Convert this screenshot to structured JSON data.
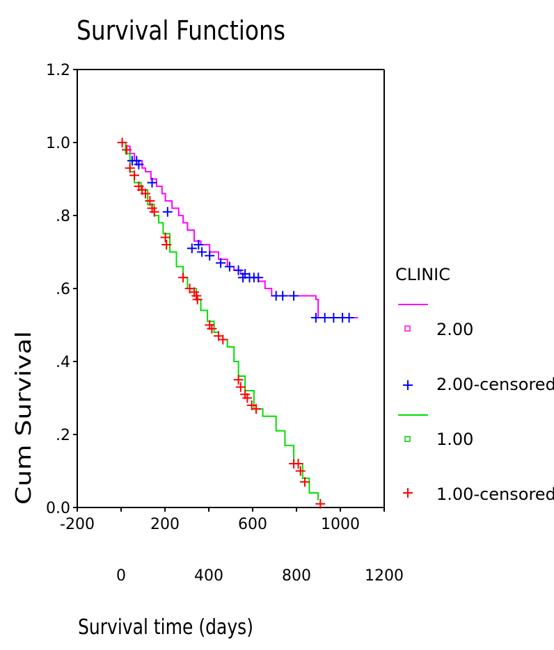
{
  "chart_data": {
    "type": "line",
    "title": "Survival Functions",
    "xlabel": "Survival time (days)",
    "ylabel": "Cum Survival",
    "xlim": [
      -200,
      1200
    ],
    "ylim": [
      0.0,
      1.2
    ],
    "x_ticks_row1": [
      "-200",
      "200",
      "600",
      "1000"
    ],
    "x_ticks_row2": [
      "0",
      "400",
      "800",
      "1200"
    ],
    "y_ticks": [
      "0.0",
      ".2",
      ".4",
      ".6",
      ".8",
      "1.0",
      "1.2"
    ],
    "legend": {
      "title": "CLINIC",
      "entries": [
        "2.00",
        "2.00-censored",
        "1.00",
        "1.00-censored"
      ]
    },
    "colors": {
      "clinic2_line": "#ff00ff",
      "clinic2_censored": "#0000ff",
      "clinic1_line": "#00dd00",
      "clinic1_censored": "#ff0000"
    },
    "series": [
      {
        "name": "2.00",
        "points": [
          [
            0,
            1.0
          ],
          [
            20,
            0.99
          ],
          [
            40,
            0.97
          ],
          [
            60,
            0.95
          ],
          [
            95,
            0.93
          ],
          [
            110,
            0.92
          ],
          [
            135,
            0.9
          ],
          [
            160,
            0.88
          ],
          [
            185,
            0.86
          ],
          [
            200,
            0.84
          ],
          [
            230,
            0.82
          ],
          [
            260,
            0.8
          ],
          [
            280,
            0.78
          ],
          [
            300,
            0.76
          ],
          [
            330,
            0.73
          ],
          [
            360,
            0.72
          ],
          [
            400,
            0.7
          ],
          [
            440,
            0.68
          ],
          [
            480,
            0.66
          ],
          [
            510,
            0.65
          ],
          [
            540,
            0.64
          ],
          [
            580,
            0.63
          ],
          [
            620,
            0.62
          ],
          [
            650,
            0.6
          ],
          [
            680,
            0.58
          ],
          [
            880,
            0.57
          ],
          [
            890,
            0.52
          ],
          [
            1070,
            0.52
          ]
        ],
        "censored": [
          [
            50,
            0.95
          ],
          [
            70,
            0.95
          ],
          [
            80,
            0.94
          ],
          [
            140,
            0.89
          ],
          [
            210,
            0.81
          ],
          [
            320,
            0.71
          ],
          [
            350,
            0.72
          ],
          [
            365,
            0.7
          ],
          [
            400,
            0.69
          ],
          [
            450,
            0.67
          ],
          [
            490,
            0.66
          ],
          [
            530,
            0.65
          ],
          [
            550,
            0.63
          ],
          [
            560,
            0.64
          ],
          [
            580,
            0.63
          ],
          [
            600,
            0.63
          ],
          [
            620,
            0.63
          ],
          [
            700,
            0.58
          ],
          [
            730,
            0.58
          ],
          [
            780,
            0.58
          ],
          [
            880,
            0.52
          ],
          [
            920,
            0.52
          ],
          [
            960,
            0.52
          ],
          [
            1000,
            0.52
          ],
          [
            1030,
            0.52
          ]
        ]
      },
      {
        "name": "1.00",
        "points": [
          [
            0,
            1.0
          ],
          [
            20,
            0.97
          ],
          [
            40,
            0.92
          ],
          [
            60,
            0.89
          ],
          [
            90,
            0.87
          ],
          [
            120,
            0.83
          ],
          [
            150,
            0.8
          ],
          [
            170,
            0.78
          ],
          [
            190,
            0.75
          ],
          [
            220,
            0.7
          ],
          [
            250,
            0.66
          ],
          [
            280,
            0.63
          ],
          [
            300,
            0.6
          ],
          [
            340,
            0.57
          ],
          [
            360,
            0.54
          ],
          [
            390,
            0.51
          ],
          [
            420,
            0.48
          ],
          [
            440,
            0.46
          ],
          [
            480,
            0.44
          ],
          [
            510,
            0.4
          ],
          [
            530,
            0.36
          ],
          [
            560,
            0.32
          ],
          [
            600,
            0.27
          ],
          [
            640,
            0.25
          ],
          [
            700,
            0.21
          ],
          [
            740,
            0.17
          ],
          [
            780,
            0.12
          ],
          [
            820,
            0.08
          ],
          [
            850,
            0.04
          ],
          [
            890,
            0.02
          ]
        ],
        "censored": [
          [
            5,
            1.0
          ],
          [
            25,
            0.98
          ],
          [
            40,
            0.93
          ],
          [
            60,
            0.91
          ],
          [
            80,
            0.88
          ],
          [
            95,
            0.87
          ],
          [
            110,
            0.86
          ],
          [
            130,
            0.84
          ],
          [
            140,
            0.82
          ],
          [
            150,
            0.81
          ],
          [
            200,
            0.74
          ],
          [
            205,
            0.72
          ],
          [
            280,
            0.63
          ],
          [
            310,
            0.6
          ],
          [
            330,
            0.59
          ],
          [
            340,
            0.58
          ],
          [
            345,
            0.57
          ],
          [
            400,
            0.5
          ],
          [
            410,
            0.49
          ],
          [
            440,
            0.47
          ],
          [
            460,
            0.46
          ],
          [
            530,
            0.35
          ],
          [
            540,
            0.33
          ],
          [
            560,
            0.31
          ],
          [
            570,
            0.3
          ],
          [
            590,
            0.28
          ],
          [
            610,
            0.27
          ],
          [
            780,
            0.12
          ],
          [
            800,
            0.12
          ],
          [
            810,
            0.1
          ],
          [
            830,
            0.07
          ],
          [
            900,
            0.01
          ]
        ]
      }
    ]
  }
}
